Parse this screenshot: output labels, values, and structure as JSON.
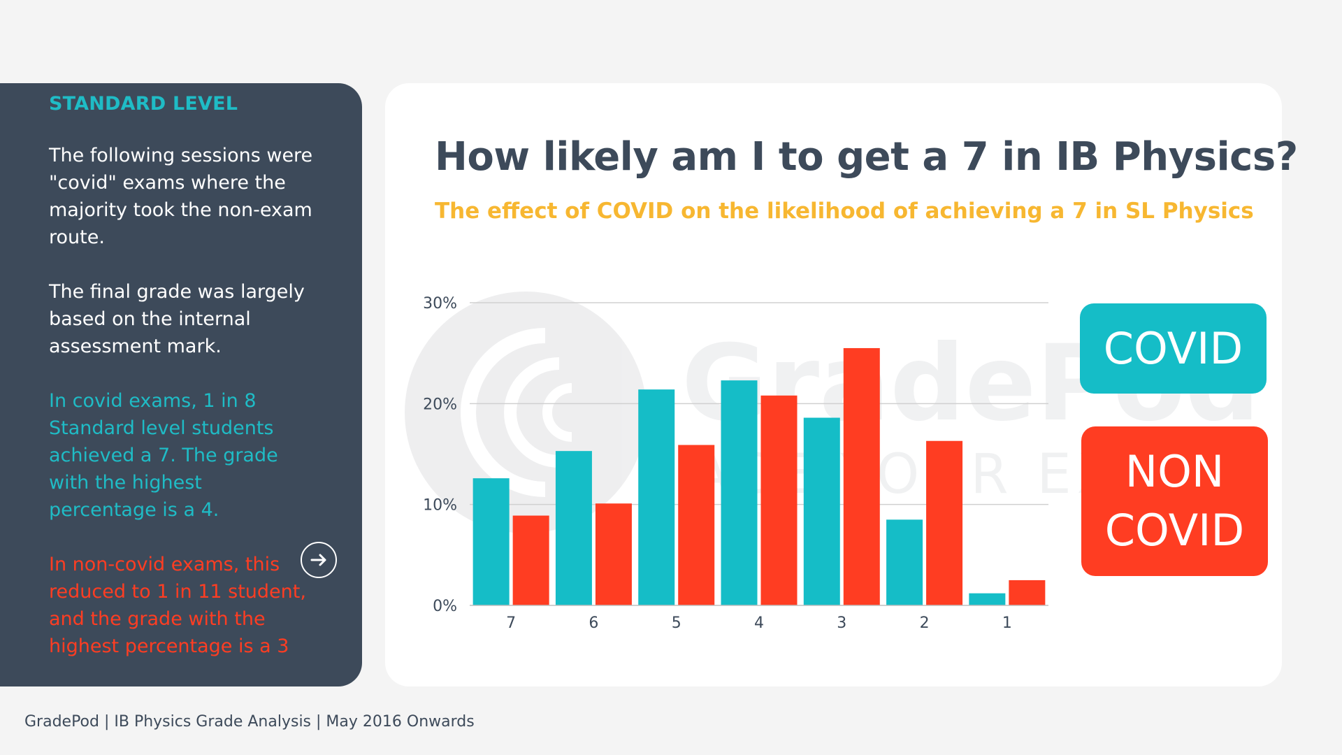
{
  "side_panel": {
    "heading": "STANDARD LEVEL",
    "para1": "The following sessions were \"covid\" exams where the majority took the non-exam route.",
    "para2": "The final grade was largely based on the internal assessment mark.",
    "para3": "In covid exams, 1 in 8 Standard level students achieved a 7. The grade with the highest percentage is a 4.",
    "para4": "In non-covid exams, this reduced to 1 in 11 student, and the grade with the highest percentage is a 3",
    "next_icon": "arrow-right-icon"
  },
  "watermark": {
    "brand": "GradePod",
    "tagline": "ACE YOUR EXAMS"
  },
  "legend": {
    "covid": "COVID",
    "noncovid": "NON COVID"
  },
  "footer": {
    "text": "GradePod | IB Physics Grade Analysis | May 2016 Onwards"
  },
  "colors": {
    "covid": "#15bdc7",
    "noncovid": "#ff3d22",
    "panel": "#3d4a5a",
    "title": "#3d4a5a",
    "subtitle": "#f7b731"
  },
  "chart_data": {
    "type": "bar",
    "title": "How likely am I to get a 7 in IB Physics?",
    "subtitle": "The effect of COVID on the likelihood of achieving a 7 in SL Physics",
    "categories": [
      "7",
      "6",
      "5",
      "4",
      "3",
      "2",
      "1"
    ],
    "series": [
      {
        "name": "COVID",
        "values": [
          12.6,
          15.3,
          21.4,
          22.3,
          18.6,
          8.5,
          1.2
        ]
      },
      {
        "name": "NON COVID",
        "values": [
          8.9,
          10.1,
          15.9,
          20.8,
          25.5,
          16.3,
          2.5
        ]
      }
    ],
    "yticks": [
      "0%",
      "10%",
      "20%",
      "30%"
    ],
    "ylim": [
      0,
      30
    ],
    "xlabel": "",
    "ylabel": "",
    "grid": true,
    "legend": "right"
  }
}
